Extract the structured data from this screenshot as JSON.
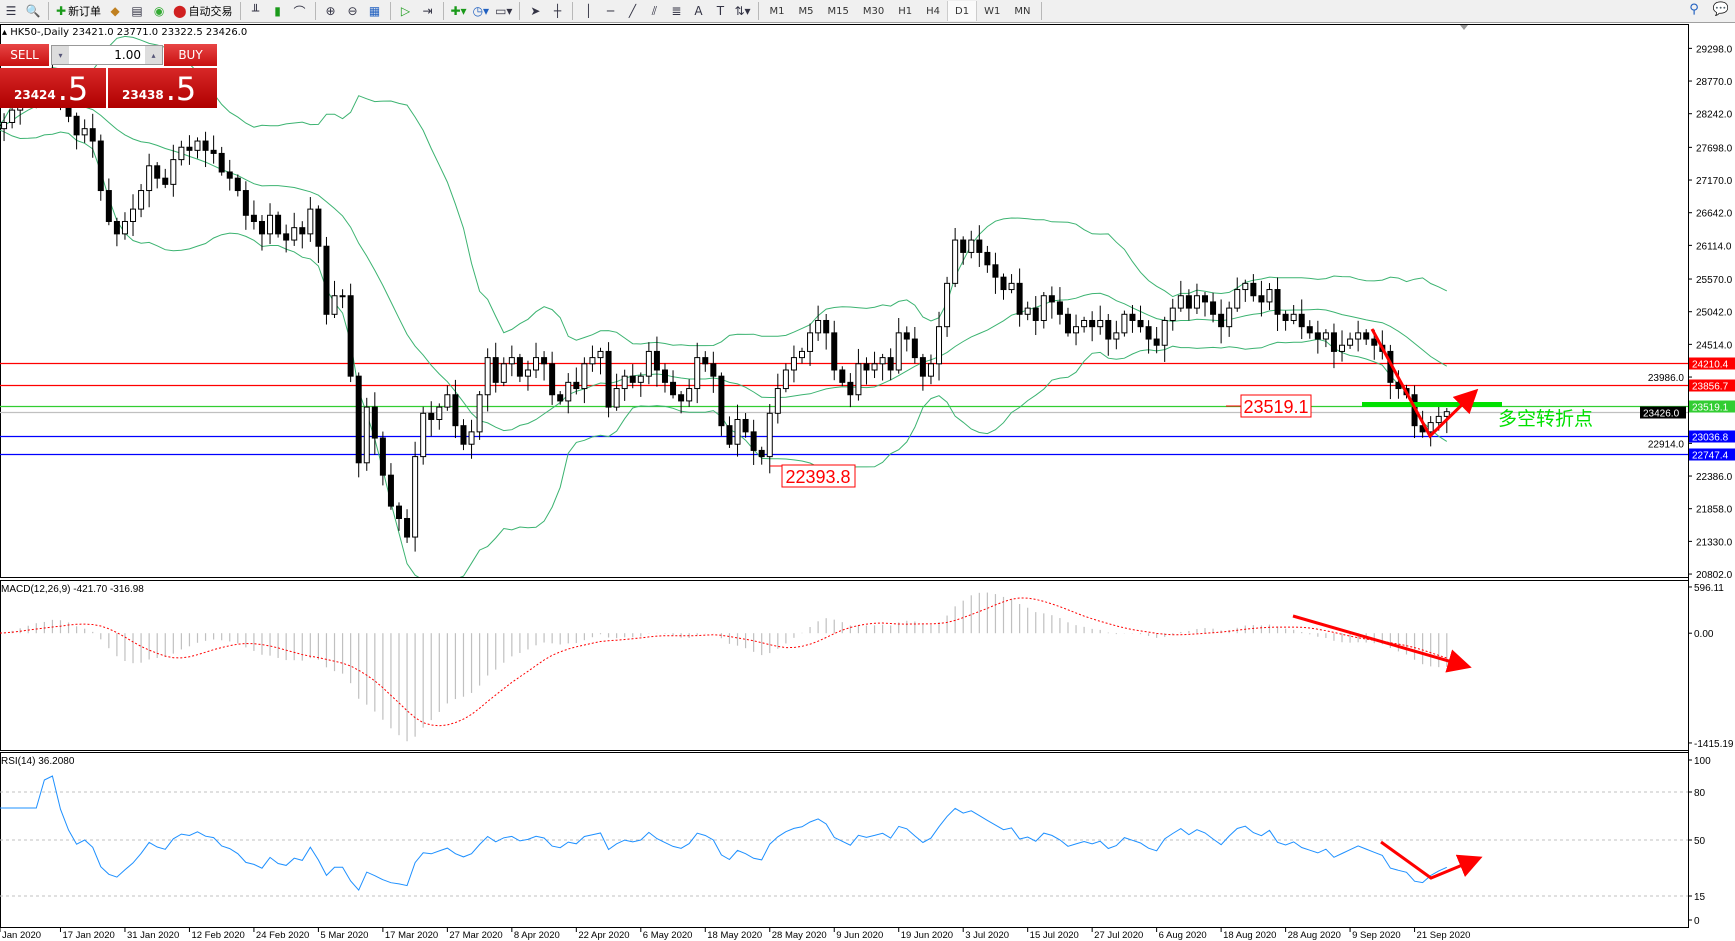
{
  "toolbar": {
    "new_order_label": "新订单",
    "auto_trading_label": "自动交易",
    "icons": [
      "market-watch-icon",
      "navigator-icon",
      "new-order-icon",
      "metaeditor-icon",
      "signals-icon",
      "services-icon",
      "auto-trading-icon",
      "bar-chart-icon",
      "candlestick-icon",
      "line-chart-icon",
      "zoom-in-icon",
      "zoom-out-icon",
      "tile-windows-icon",
      "autoscroll-icon",
      "chart-shift-icon",
      "indicators-icon",
      "periods-icon",
      "templates-icon",
      "cursor-icon",
      "crosshair-icon",
      "vertical-line-icon",
      "horizontal-line-icon",
      "trendline-icon",
      "equidistant-channel-icon",
      "fibonacci-icon",
      "text-icon",
      "text-label-icon",
      "arrows-icon",
      "search-icon",
      "chat-icon"
    ],
    "timeframes": [
      "M1",
      "M5",
      "M15",
      "M30",
      "H1",
      "H4",
      "D1",
      "W1",
      "MN"
    ],
    "active_timeframe": "D1"
  },
  "symbol_title": "HK50-,Daily  23421.0 23771.0 23322.5 23426.0",
  "trade_panel": {
    "sell_label": "SELL",
    "buy_label": "BUY",
    "lot": "1.00",
    "sell_price_main": "23424",
    "sell_price_big": ".5",
    "buy_price_main": "23438",
    "buy_price_big": ".5"
  },
  "price_axis": [
    "29298.0",
    "28770.0",
    "28242.0",
    "27698.0",
    "27170.0",
    "26642.0",
    "26114.0",
    "25570.0",
    "25042.0",
    "24514.0",
    "23986.0",
    "22914.0",
    "22386.0",
    "21858.0",
    "21330.0",
    "20802.0"
  ],
  "hlines": [
    {
      "value": "24210.4",
      "color": "#ff0000"
    },
    {
      "value": "23856.7",
      "color": "#ff0000"
    },
    {
      "value": "23519.1",
      "color": "#32cd32"
    },
    {
      "value": "23426.0",
      "color": "#000000",
      "line": "#c0c0c0"
    },
    {
      "value": "23036.8",
      "color": "#0000ff"
    },
    {
      "value": "22747.4",
      "color": "#0000ff"
    }
  ],
  "annotations": {
    "label_23519": "23519.1",
    "label_22393": "22393.8",
    "turning_point": "多空转折点"
  },
  "macd": {
    "title": "MACD(12,26,9) -421.70 -316.98",
    "axis": [
      "596.11",
      "0.00",
      "-1415.19"
    ]
  },
  "rsi": {
    "title": "RSI(14) 36.2080",
    "axis": [
      "100",
      "80",
      "50",
      "15",
      "0"
    ]
  },
  "date_axis": [
    "Jan 2020",
    "17 Jan 2020",
    "31 Jan 2020",
    "12 Feb 2020",
    "24 Feb 2020",
    "5 Mar 2020",
    "17 Mar 2020",
    "27 Mar 2020",
    "8 Apr 2020",
    "22 Apr 2020",
    "6 May 2020",
    "18 May 2020",
    "28 May 2020",
    "9 Jun 2020",
    "19 Jun 2020",
    "3 Jul 2020",
    "15 Jul 2020",
    "27 Jul 2020",
    "6 Aug 2020",
    "18 Aug 2020",
    "28 Aug 2020",
    "9 Sep 2020",
    "21 Sep 2020"
  ],
  "colors": {
    "bands": "#3cb371",
    "macd_hist": "#c0c0c0",
    "macd_signal": "#ff0000",
    "rsi": "#1e90ff",
    "arrow": "#ff0000",
    "green_marker": "#00e000"
  },
  "chart_data": {
    "type": "candlestick",
    "symbol": "HK50-",
    "timeframe": "Daily",
    "indicators": [
      "Bollinger Bands(20,2)",
      "MACD(12,26,9)",
      "RSI(14)"
    ],
    "ylim": [
      20802,
      29298
    ],
    "first_open": 27900,
    "closes": [
      28000,
      28100,
      28300,
      28500,
      28600,
      28700,
      28600,
      28800,
      28500,
      28200,
      27900,
      28000,
      27800,
      27000,
      26500,
      26300,
      26500,
      26700,
      27000,
      27400,
      27200,
      27100,
      27500,
      27700,
      27650,
      27800,
      27650,
      27600,
      27300,
      27200,
      27000,
      26600,
      26500,
      26300,
      26600,
      26300,
      26200,
      26400,
      26300,
      26700,
      26100,
      25000,
      25300,
      25300,
      24000,
      22600,
      23500,
      23000,
      22400,
      21900,
      21700,
      21400,
      22700,
      23400,
      23300,
      23500,
      23700,
      23200,
      22900,
      23100,
      23700,
      24300,
      23900,
      24200,
      24300,
      24000,
      24100,
      24300,
      24200,
      23700,
      23600,
      23900,
      23800,
      24200,
      24300,
      24400,
      23500,
      23800,
      24000,
      23900,
      24000,
      24400,
      24100,
      23900,
      23700,
      23600,
      23800,
      24300,
      24200,
      24000,
      23200,
      22900,
      23300,
      23100,
      22800,
      22700,
      23400,
      23800,
      24100,
      24300,
      24400,
      24700,
      24900,
      24700,
      24100,
      23900,
      23700,
      24200,
      24100,
      24200,
      24300,
      24100,
      24700,
      24600,
      24300,
      24000,
      24200,
      24800,
      25500,
      26200,
      26000,
      26200,
      26000,
      25800,
      25600,
      25400,
      25500,
      25000,
      25100,
      24900,
      25300,
      25200,
      25000,
      24700,
      24800,
      24900,
      24800,
      24900,
      24600,
      24700,
      25000,
      24900,
      24800,
      24600,
      24500,
      24900,
      25100,
      25300,
      25100,
      25300,
      25200,
      25000,
      24800,
      25100,
      25400,
      25500,
      25300,
      25200,
      25400,
      25000,
      24900,
      25000,
      24800,
      24700,
      24600,
      24700,
      24400,
      24500,
      24600,
      24700,
      24600,
      24500,
      24400,
      23900,
      23800,
      23700,
      23200,
      23100,
      23250,
      23350,
      23426
    ]
  }
}
